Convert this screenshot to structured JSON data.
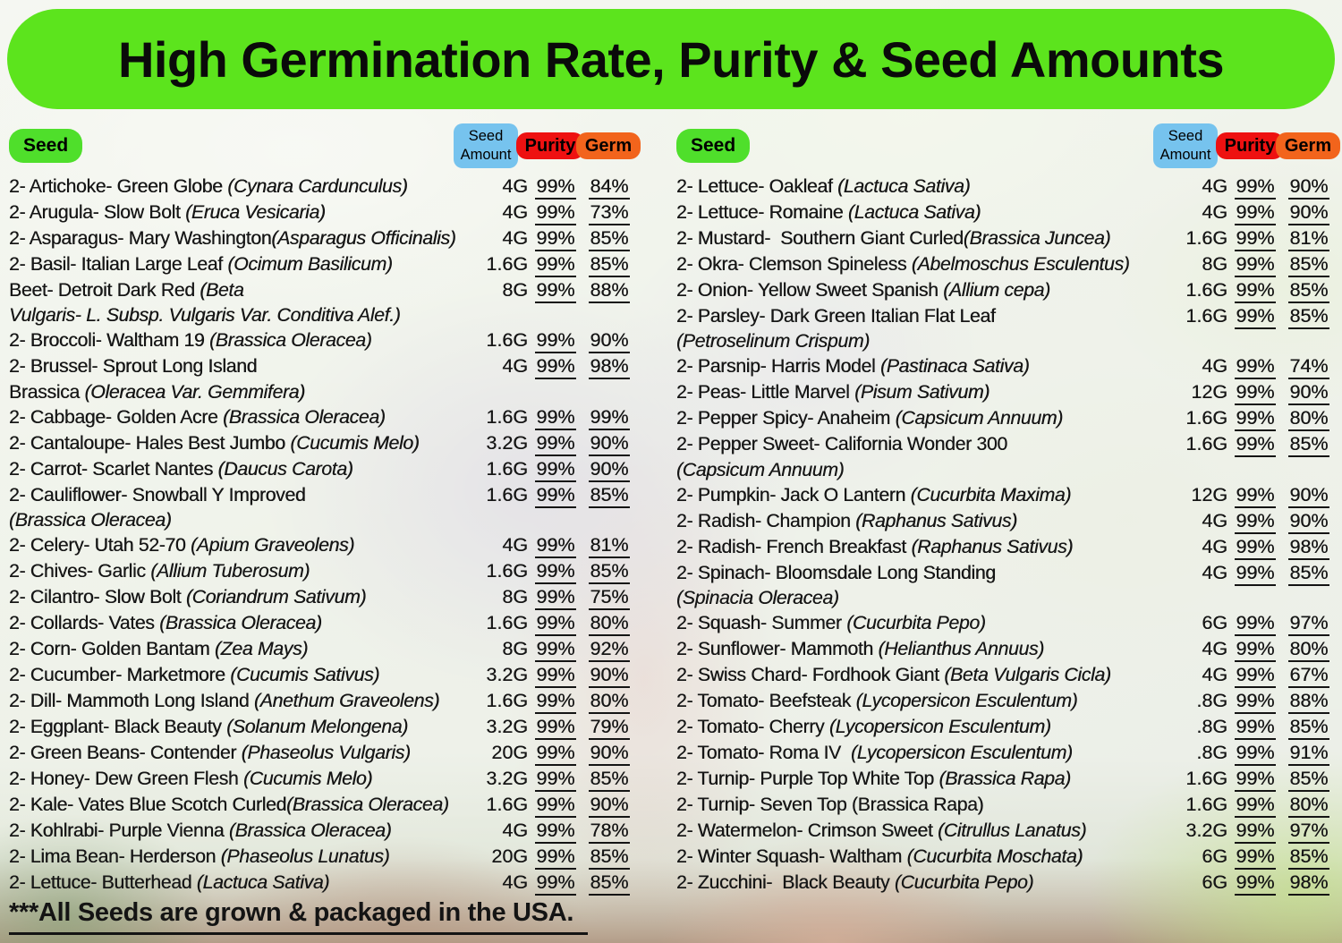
{
  "title": "High Germination Rate, Purity & Seed Amounts",
  "footer": "***All Seeds are grown & packaged in the USA.",
  "colors": {
    "banner_green": "#5ce41d",
    "seed_pill_green": "#4fdf2b",
    "amount_pill_blue": "#76c3ee",
    "purity_pill_red": "#ee1111",
    "germ_pill_orange": "#f2641c",
    "text": "#141414"
  },
  "headers": {
    "seed": "Seed",
    "amount_line1": "Seed",
    "amount_line2": "Amount",
    "purity": "Purity",
    "germ": "Germ"
  },
  "columns": [
    {
      "rows": [
        {
          "lines": [
            [
              {
                "t": "2- Artichoke- Green Globe "
              },
              {
                "t": "(Cynara Cardunculus)",
                "i": true
              }
            ]
          ],
          "amount": "4G",
          "purity": "99%",
          "germ": "84%"
        },
        {
          "lines": [
            [
              {
                "t": "2- Arugula- Slow Bolt "
              },
              {
                "t": "(Eruca Vesicaria)",
                "i": true
              }
            ]
          ],
          "amount": "4G",
          "purity": "99%",
          "germ": "73%"
        },
        {
          "lines": [
            [
              {
                "t": "2- Asparagus- Mary Washington"
              },
              {
                "t": "(Asparagus Officinalis)",
                "i": true
              }
            ]
          ],
          "amount": "4G",
          "purity": "99%",
          "germ": "85%"
        },
        {
          "lines": [
            [
              {
                "t": "2- Basil- Italian Large Leaf "
              },
              {
                "t": "(Ocimum Basilicum)",
                "i": true
              }
            ]
          ],
          "amount": "1.6G",
          "purity": "99%",
          "germ": "85%"
        },
        {
          "lines": [
            [
              {
                "t": "Beet- Detroit Dark Red "
              },
              {
                "t": "(Beta",
                "i": true
              }
            ],
            [
              {
                "t": "Vulgaris- L. Subsp. Vulgaris Var. Conditiva Alef.)",
                "i": true
              }
            ]
          ],
          "amount": "8G",
          "purity": "99%",
          "germ": "88%"
        },
        {
          "lines": [
            [
              {
                "t": "2- Broccoli- Waltham 19 "
              },
              {
                "t": "(Brassica Oleracea)",
                "i": true
              }
            ]
          ],
          "amount": "1.6G",
          "purity": "99%",
          "germ": "90%"
        },
        {
          "lines": [
            [
              {
                "t": "2- Brussel- Sprout Long Island"
              }
            ],
            [
              {
                "t": "Brassica "
              },
              {
                "t": "(Oleracea Var. Gemmifera)",
                "i": true
              }
            ]
          ],
          "amount": "4G",
          "purity": "99%",
          "germ": "98%"
        },
        {
          "lines": [
            [
              {
                "t": "2- Cabbage- Golden Acre "
              },
              {
                "t": "(Brassica Oleracea)",
                "i": true
              }
            ]
          ],
          "amount": "1.6G",
          "purity": "99%",
          "germ": "99%"
        },
        {
          "lines": [
            [
              {
                "t": "2- Cantaloupe- Hales Best Jumbo "
              },
              {
                "t": "(Cucumis Melo)",
                "i": true
              }
            ]
          ],
          "amount": "3.2G",
          "purity": "99%",
          "germ": "90%"
        },
        {
          "lines": [
            [
              {
                "t": "2- Carrot- Scarlet Nantes "
              },
              {
                "t": "(Daucus Carota)",
                "i": true
              }
            ]
          ],
          "amount": "1.6G",
          "purity": "99%",
          "germ": "90%"
        },
        {
          "lines": [
            [
              {
                "t": "2- Cauliflower- Snowball Y Improved"
              }
            ],
            [
              {
                "t": "(Brassica Oleracea)",
                "i": true
              }
            ]
          ],
          "amount": "1.6G",
          "purity": "99%",
          "germ": "85%"
        },
        {
          "lines": [
            [
              {
                "t": "2- Celery- Utah 52-70 "
              },
              {
                "t": "(Apium Graveolens)",
                "i": true
              }
            ]
          ],
          "amount": "4G",
          "purity": "99%",
          "germ": "81%"
        },
        {
          "lines": [
            [
              {
                "t": "2- Chives- Garlic "
              },
              {
                "t": "(Allium Tuberosum)",
                "i": true
              }
            ]
          ],
          "amount": "1.6G",
          "purity": "99%",
          "germ": "85%"
        },
        {
          "lines": [
            [
              {
                "t": "2- Cilantro- Slow Bolt "
              },
              {
                "t": "(Coriandrum Sativum)",
                "i": true
              }
            ]
          ],
          "amount": "8G",
          "purity": "99%",
          "germ": "75%"
        },
        {
          "lines": [
            [
              {
                "t": "2- Collards- Vates "
              },
              {
                "t": "(Brassica Oleracea)",
                "i": true
              }
            ]
          ],
          "amount": "1.6G",
          "purity": "99%",
          "germ": "80%"
        },
        {
          "lines": [
            [
              {
                "t": "2- Corn- Golden Bantam "
              },
              {
                "t": "(Zea Mays)",
                "i": true
              }
            ]
          ],
          "amount": "8G",
          "purity": "99%",
          "germ": "92%"
        },
        {
          "lines": [
            [
              {
                "t": "2- Cucumber- Marketmore "
              },
              {
                "t": "(Cucumis Sativus)",
                "i": true
              }
            ]
          ],
          "amount": "3.2G",
          "purity": "99%",
          "germ": "90%"
        },
        {
          "lines": [
            [
              {
                "t": "2- Dill- Mammoth Long Island "
              },
              {
                "t": "(Anethum Graveolens)",
                "i": true
              }
            ]
          ],
          "amount": "1.6G",
          "purity": "99%",
          "germ": "80%"
        },
        {
          "lines": [
            [
              {
                "t": "2- Eggplant- Black Beauty "
              },
              {
                "t": "(Solanum Melongena)",
                "i": true
              }
            ]
          ],
          "amount": "3.2G",
          "purity": "99%",
          "germ": "79%"
        },
        {
          "lines": [
            [
              {
                "t": "2- Green Beans- Contender "
              },
              {
                "t": "(Phaseolus Vulgaris)",
                "i": true
              }
            ]
          ],
          "amount": "20G",
          "purity": "99%",
          "germ": "90%"
        },
        {
          "lines": [
            [
              {
                "t": "2- Honey- Dew Green Flesh "
              },
              {
                "t": "(Cucumis Melo)",
                "i": true
              }
            ]
          ],
          "amount": "3.2G",
          "purity": "99%",
          "germ": "85%"
        },
        {
          "lines": [
            [
              {
                "t": "2- Kale- Vates Blue Scotch Curled"
              },
              {
                "t": "(Brassica Oleracea)",
                "i": true
              }
            ]
          ],
          "amount": "1.6G",
          "purity": "99%",
          "germ": "90%"
        },
        {
          "lines": [
            [
              {
                "t": "2- Kohlrabi- Purple Vienna "
              },
              {
                "t": "(Brassica Oleracea)",
                "i": true
              }
            ]
          ],
          "amount": "4G",
          "purity": "99%",
          "germ": "78%"
        },
        {
          "lines": [
            [
              {
                "t": "2- Lima Bean- Herderson "
              },
              {
                "t": "(Phaseolus Lunatus)",
                "i": true
              }
            ]
          ],
          "amount": "20G",
          "purity": "99%",
          "germ": "85%"
        },
        {
          "lines": [
            [
              {
                "t": "2- Lettuce- Butterhead "
              },
              {
                "t": "(Lactuca Sativa)",
                "i": true
              }
            ]
          ],
          "amount": "4G",
          "purity": "99%",
          "germ": "85%"
        }
      ]
    },
    {
      "rows": [
        {
          "lines": [
            [
              {
                "t": "2- Lettuce- Oakleaf "
              },
              {
                "t": "(Lactuca Sativa)",
                "i": true
              }
            ]
          ],
          "amount": "4G",
          "purity": "99%",
          "germ": "90%"
        },
        {
          "lines": [
            [
              {
                "t": "2- Lettuce- Romaine "
              },
              {
                "t": "(Lactuca Sativa)",
                "i": true
              }
            ]
          ],
          "amount": "4G",
          "purity": "99%",
          "germ": "90%"
        },
        {
          "lines": [
            [
              {
                "t": "2- Mustard-  Southern Giant Curled"
              },
              {
                "t": "(Brassica Juncea)",
                "i": true
              }
            ]
          ],
          "amount": "1.6G",
          "purity": "99%",
          "germ": "81%"
        },
        {
          "lines": [
            [
              {
                "t": "2- Okra- Clemson Spineless "
              },
              {
                "t": "(Abelmoschus Esculentus)",
                "i": true
              }
            ]
          ],
          "amount": "8G",
          "purity": "99%",
          "germ": "85%"
        },
        {
          "lines": [
            [
              {
                "t": "2- Onion- Yellow Sweet Spanish "
              },
              {
                "t": "(Allium cepa)",
                "i": true
              }
            ]
          ],
          "amount": "1.6G",
          "purity": "99%",
          "germ": "85%"
        },
        {
          "lines": [
            [
              {
                "t": "2- Parsley- Dark Green Italian Flat Leaf"
              }
            ],
            [
              {
                "t": "(Petroselinum Crispum)",
                "i": true
              }
            ]
          ],
          "amount": "1.6G",
          "purity": "99%",
          "germ": "85%"
        },
        {
          "lines": [
            [
              {
                "t": "2- Parsnip- Harris Model "
              },
              {
                "t": "(Pastinaca Sativa)",
                "i": true
              }
            ]
          ],
          "amount": "4G",
          "purity": "99%",
          "germ": "74%"
        },
        {
          "lines": [
            [
              {
                "t": "2- Peas- Little Marvel "
              },
              {
                "t": "(Pisum Sativum)",
                "i": true
              }
            ]
          ],
          "amount": "12G",
          "purity": "99%",
          "germ": "90%"
        },
        {
          "lines": [
            [
              {
                "t": "2- Pepper Spicy- Anaheim "
              },
              {
                "t": "(Capsicum Annuum)",
                "i": true
              }
            ]
          ],
          "amount": "1.6G",
          "purity": "99%",
          "germ": "80%"
        },
        {
          "lines": [
            [
              {
                "t": "2- Pepper Sweet- California Wonder 300"
              }
            ],
            [
              {
                "t": "(Capsicum Annuum)",
                "i": true
              }
            ]
          ],
          "amount": "1.6G",
          "purity": "99%",
          "germ": "85%"
        },
        {
          "lines": [
            [
              {
                "t": "2- Pumpkin- Jack O Lantern "
              },
              {
                "t": "(Cucurbita Maxima)",
                "i": true
              }
            ]
          ],
          "amount": "12G",
          "purity": "99%",
          "germ": "90%"
        },
        {
          "lines": [
            [
              {
                "t": "2- Radish- Champion "
              },
              {
                "t": "(Raphanus Sativus)",
                "i": true
              }
            ]
          ],
          "amount": "4G",
          "purity": "99%",
          "germ": "90%"
        },
        {
          "lines": [
            [
              {
                "t": "2- Radish- French Breakfast "
              },
              {
                "t": "(Raphanus Sativus)",
                "i": true
              }
            ]
          ],
          "amount": "4G",
          "purity": "99%",
          "germ": "98%"
        },
        {
          "lines": [
            [
              {
                "t": "2- Spinach- Bloomsdale Long Standing"
              }
            ],
            [
              {
                "t": "(Spinacia Oleracea)",
                "i": true
              }
            ]
          ],
          "amount": "4G",
          "purity": "99%",
          "germ": "85%"
        },
        {
          "lines": [
            [
              {
                "t": "2- Squash- Summer "
              },
              {
                "t": "(Cucurbita Pepo)",
                "i": true
              }
            ]
          ],
          "amount": "6G",
          "purity": "99%",
          "germ": "97%"
        },
        {
          "lines": [
            [
              {
                "t": "2- Sunflower- Mammoth "
              },
              {
                "t": "(Helianthus Annuus)",
                "i": true
              }
            ]
          ],
          "amount": "4G",
          "purity": "99%",
          "germ": "80%"
        },
        {
          "lines": [
            [
              {
                "t": "2- Swiss Chard- Fordhook Giant "
              },
              {
                "t": "(Beta Vulgaris Cicla)",
                "i": true
              }
            ]
          ],
          "amount": "4G",
          "purity": "99%",
          "germ": "67%"
        },
        {
          "lines": [
            [
              {
                "t": "2- Tomato- Beefsteak "
              },
              {
                "t": "(Lycopersicon Esculentum)",
                "i": true
              }
            ]
          ],
          "amount": ".8G",
          "purity": "99%",
          "germ": "88%"
        },
        {
          "lines": [
            [
              {
                "t": "2- Tomato- Cherry "
              },
              {
                "t": "(Lycopersicon Esculentum)",
                "i": true
              }
            ]
          ],
          "amount": ".8G",
          "purity": "99%",
          "germ": "85%"
        },
        {
          "lines": [
            [
              {
                "t": "2- Tomato- Roma IV  "
              },
              {
                "t": "(Lycopersicon Esculentum)",
                "i": true
              }
            ]
          ],
          "amount": ".8G",
          "purity": "99%",
          "germ": "91%"
        },
        {
          "lines": [
            [
              {
                "t": "2- Turnip- Purple Top White Top "
              },
              {
                "t": "(Brassica Rapa)",
                "i": true
              }
            ]
          ],
          "amount": "1.6G",
          "purity": "99%",
          "germ": "85%"
        },
        {
          "lines": [
            [
              {
                "t": "2- Turnip- Seven Top (Brassica Rapa)"
              }
            ]
          ],
          "amount": "1.6G",
          "purity": "99%",
          "germ": "80%"
        },
        {
          "lines": [
            [
              {
                "t": "2- Watermelon- Crimson Sweet "
              },
              {
                "t": "(Citrullus Lanatus)",
                "i": true
              }
            ]
          ],
          "amount": "3.2G",
          "purity": "99%",
          "germ": "97%"
        },
        {
          "lines": [
            [
              {
                "t": "2- Winter Squash- Waltham "
              },
              {
                "t": "(Cucurbita Moschata)",
                "i": true
              }
            ]
          ],
          "amount": "6G",
          "purity": "99%",
          "germ": "85%"
        },
        {
          "lines": [
            [
              {
                "t": "2- Zucchini-  Black Beauty "
              },
              {
                "t": "(Cucurbita Pepo)",
                "i": true
              }
            ]
          ],
          "amount": "6G",
          "purity": "99%",
          "germ": "98%"
        }
      ]
    }
  ]
}
